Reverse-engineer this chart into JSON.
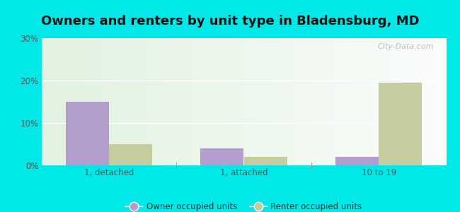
{
  "title": "Owners and renters by unit type in Bladensburg, MD",
  "categories": [
    "1, detached",
    "1, attached",
    "10 to 19"
  ],
  "owner_values": [
    15.0,
    4.0,
    2.0
  ],
  "renter_values": [
    5.0,
    2.0,
    19.5
  ],
  "owner_color": "#b39dcc",
  "renter_color": "#c5cc9d",
  "ylim": [
    0,
    30
  ],
  "yticks": [
    0,
    10,
    20,
    30
  ],
  "ytick_labels": [
    "0%",
    "10%",
    "20%",
    "30%"
  ],
  "outer_background": "#00e8e8",
  "watermark": "City-Data.com",
  "legend_owner": "Owner occupied units",
  "legend_renter": "Renter occupied units",
  "bar_width": 0.32,
  "title_fontsize": 13,
  "grid_color": "#ffffff"
}
